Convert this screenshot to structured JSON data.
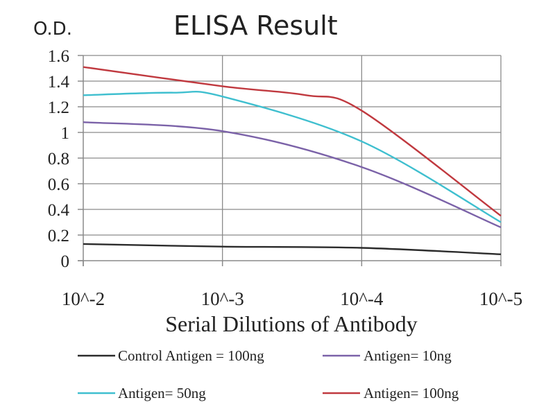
{
  "chart_data": {
    "type": "line",
    "title": "ELISA Result",
    "ylabel": "O.D.",
    "xlabel": "Serial Dilutions of Antibody",
    "categories": [
      "10^-2",
      "10^-3",
      "10^-4",
      "10^-5"
    ],
    "ylim": [
      0,
      1.6
    ],
    "yticks": [
      0,
      0.2,
      0.4,
      0.6,
      0.8,
      1,
      1.2,
      1.4,
      1.6
    ],
    "ytick_labels": [
      "0",
      "0.2",
      "0.4",
      "0.6",
      "0.8",
      "1",
      "1.2",
      "1.4",
      "1.6"
    ],
    "grid": true,
    "legend_position": "bottom",
    "series": [
      {
        "name": "Control Antigen = 100ng",
        "color": "#2b2b2b",
        "x": [
          0,
          1,
          2,
          3
        ],
        "values": [
          0.13,
          0.11,
          0.1,
          0.05
        ]
      },
      {
        "name": "Antigen= 10ng",
        "color": "#7b62a8",
        "x": [
          0,
          1,
          2,
          3
        ],
        "values": [
          1.08,
          1.01,
          0.73,
          0.26
        ]
      },
      {
        "name": "Antigen= 50ng",
        "color": "#3fbfcf",
        "x": [
          0,
          0.65,
          1,
          2,
          3
        ],
        "values": [
          1.29,
          1.31,
          1.28,
          0.93,
          0.3
        ]
      },
      {
        "name": "Antigen= 100ng",
        "color": "#c0393f",
        "x": [
          0,
          1,
          1.6,
          2,
          3
        ],
        "values": [
          1.51,
          1.36,
          1.29,
          1.17,
          0.35
        ]
      }
    ]
  }
}
